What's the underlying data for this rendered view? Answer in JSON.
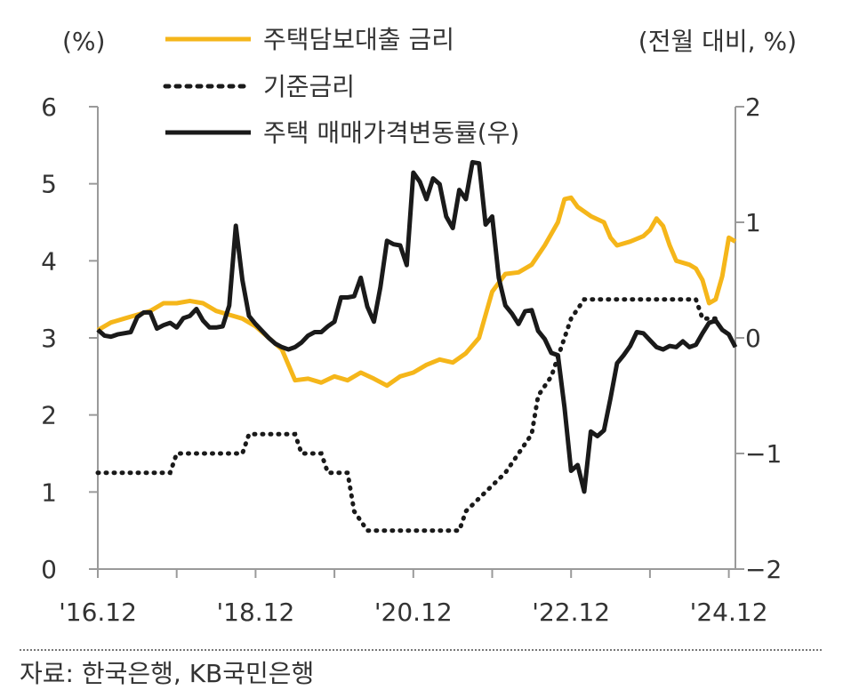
{
  "chart_data": {
    "type": "line",
    "left_unit": "(%)",
    "right_unit": "(전월 대비, %)",
    "y_left": {
      "lim": [
        0,
        6
      ],
      "ticks": [
        "0",
        "1",
        "2",
        "3",
        "4",
        "5",
        "6"
      ]
    },
    "y_right": {
      "lim": [
        -2,
        2
      ],
      "ticks": [
        "−2",
        "−1",
        "0",
        "1",
        "2"
      ]
    },
    "x_ticks": [
      {
        "label": "'16.12",
        "index": 0
      },
      {
        "label": "'18.12",
        "index": 24
      },
      {
        "label": "'20.12",
        "index": 48
      },
      {
        "label": "'22.12",
        "index": 72
      },
      {
        "label": "'24.12",
        "index": 96
      }
    ],
    "x_range": [
      0,
      97
    ],
    "colors": {
      "mortgage": "#F5B61A",
      "base": "#1a1a1a",
      "price": "#1a1a1a",
      "axis": "#9a9a9a"
    },
    "series": [
      {
        "name": "주택담보대출 금리",
        "axis": "left",
        "style": "solid-yellow",
        "points": [
          [
            0,
            3.1
          ],
          [
            2,
            3.2
          ],
          [
            4,
            3.25
          ],
          [
            6,
            3.3
          ],
          [
            8,
            3.35
          ],
          [
            10,
            3.45
          ],
          [
            12,
            3.45
          ],
          [
            14,
            3.48
          ],
          [
            16,
            3.45
          ],
          [
            18,
            3.35
          ],
          [
            20,
            3.3
          ],
          [
            22,
            3.25
          ],
          [
            24,
            3.15
          ],
          [
            26,
            3.0
          ],
          [
            28,
            2.85
          ],
          [
            30,
            2.45
          ],
          [
            32,
            2.47
          ],
          [
            34,
            2.42
          ],
          [
            36,
            2.5
          ],
          [
            38,
            2.45
          ],
          [
            40,
            2.55
          ],
          [
            42,
            2.47
          ],
          [
            44,
            2.38
          ],
          [
            46,
            2.5
          ],
          [
            48,
            2.55
          ],
          [
            50,
            2.65
          ],
          [
            52,
            2.72
          ],
          [
            54,
            2.68
          ],
          [
            56,
            2.8
          ],
          [
            58,
            3.0
          ],
          [
            60,
            3.6
          ],
          [
            62,
            3.83
          ],
          [
            64,
            3.85
          ],
          [
            66,
            3.95
          ],
          [
            68,
            4.2
          ],
          [
            70,
            4.5
          ],
          [
            71,
            4.8
          ],
          [
            72,
            4.82
          ],
          [
            73,
            4.7
          ],
          [
            75,
            4.58
          ],
          [
            77,
            4.5
          ],
          [
            78,
            4.3
          ],
          [
            79,
            4.2
          ],
          [
            81,
            4.25
          ],
          [
            83,
            4.32
          ],
          [
            84,
            4.4
          ],
          [
            85,
            4.55
          ],
          [
            86,
            4.45
          ],
          [
            87,
            4.2
          ],
          [
            88,
            4.0
          ],
          [
            90,
            3.95
          ],
          [
            91,
            3.9
          ],
          [
            92,
            3.75
          ],
          [
            93,
            3.45
          ],
          [
            94,
            3.5
          ],
          [
            95,
            3.8
          ],
          [
            96,
            4.3
          ],
          [
            97,
            4.25
          ]
        ]
      },
      {
        "name": "기준금리",
        "axis": "left",
        "style": "dotted-black",
        "points": [
          [
            0,
            1.25
          ],
          [
            11,
            1.25
          ],
          [
            12,
            1.5
          ],
          [
            22,
            1.5
          ],
          [
            23,
            1.75
          ],
          [
            30,
            1.75
          ],
          [
            31,
            1.5
          ],
          [
            34,
            1.5
          ],
          [
            35,
            1.25
          ],
          [
            38,
            1.25
          ],
          [
            39,
            0.75
          ],
          [
            41,
            0.5
          ],
          [
            55,
            0.5
          ],
          [
            56,
            0.75
          ],
          [
            59,
            1.0
          ],
          [
            62,
            1.25
          ],
          [
            64,
            1.5
          ],
          [
            66,
            1.75
          ],
          [
            67,
            2.25
          ],
          [
            69,
            2.5
          ],
          [
            70,
            2.75
          ],
          [
            71,
            3.0
          ],
          [
            72,
            3.25
          ],
          [
            74,
            3.5
          ],
          [
            91,
            3.5
          ],
          [
            92,
            3.25
          ],
          [
            94,
            3.25
          ]
        ]
      },
      {
        "name": "주택 매매가격변동률(우)",
        "axis": "right",
        "style": "solid-black",
        "points": [
          [
            0,
            0.07
          ],
          [
            1,
            0.02
          ],
          [
            2,
            0.01
          ],
          [
            3,
            0.03
          ],
          [
            4,
            0.04
          ],
          [
            5,
            0.05
          ],
          [
            6,
            0.18
          ],
          [
            7,
            0.22
          ],
          [
            8,
            0.22
          ],
          [
            9,
            0.08
          ],
          [
            10,
            0.11
          ],
          [
            11,
            0.13
          ],
          [
            12,
            0.09
          ],
          [
            13,
            0.17
          ],
          [
            14,
            0.19
          ],
          [
            15,
            0.25
          ],
          [
            16,
            0.15
          ],
          [
            17,
            0.09
          ],
          [
            18,
            0.09
          ],
          [
            19,
            0.1
          ],
          [
            20,
            0.28
          ],
          [
            21,
            0.97
          ],
          [
            22,
            0.5
          ],
          [
            23,
            0.19
          ],
          [
            24,
            0.12
          ],
          [
            25,
            0.06
          ],
          [
            26,
            0.0
          ],
          [
            27,
            -0.05
          ],
          [
            28,
            -0.08
          ],
          [
            29,
            -0.1
          ],
          [
            30,
            -0.08
          ],
          [
            31,
            -0.04
          ],
          [
            32,
            0.02
          ],
          [
            33,
            0.05
          ],
          [
            34,
            0.05
          ],
          [
            35,
            0.1
          ],
          [
            36,
            0.14
          ],
          [
            37,
            0.35
          ],
          [
            38,
            0.35
          ],
          [
            39,
            0.36
          ],
          [
            40,
            0.52
          ],
          [
            41,
            0.27
          ],
          [
            42,
            0.14
          ],
          [
            43,
            0.44
          ],
          [
            44,
            0.84
          ],
          [
            45,
            0.81
          ],
          [
            46,
            0.8
          ],
          [
            47,
            0.63
          ],
          [
            48,
            1.43
          ],
          [
            49,
            1.35
          ],
          [
            50,
            1.2
          ],
          [
            51,
            1.38
          ],
          [
            52,
            1.33
          ],
          [
            53,
            1.05
          ],
          [
            54,
            0.95
          ],
          [
            55,
            1.28
          ],
          [
            56,
            1.2
          ],
          [
            57,
            1.52
          ],
          [
            58,
            1.51
          ],
          [
            59,
            0.98
          ],
          [
            60,
            1.05
          ],
          [
            61,
            0.52
          ],
          [
            62,
            0.28
          ],
          [
            63,
            0.21
          ],
          [
            64,
            0.12
          ],
          [
            65,
            0.23
          ],
          [
            66,
            0.24
          ],
          [
            67,
            0.06
          ],
          [
            68,
            -0.01
          ],
          [
            69,
            -0.13
          ],
          [
            70,
            -0.15
          ],
          [
            71,
            -0.6
          ],
          [
            72,
            -1.15
          ],
          [
            73,
            -1.1
          ],
          [
            74,
            -1.33
          ],
          [
            75,
            -0.81
          ],
          [
            76,
            -0.85
          ],
          [
            77,
            -0.8
          ],
          [
            78,
            -0.52
          ],
          [
            79,
            -0.22
          ],
          [
            80,
            -0.15
          ],
          [
            81,
            -0.07
          ],
          [
            82,
            0.05
          ],
          [
            83,
            0.04
          ],
          [
            84,
            -0.02
          ],
          [
            85,
            -0.08
          ],
          [
            86,
            -0.1
          ],
          [
            87,
            -0.07
          ],
          [
            88,
            -0.08
          ],
          [
            89,
            -0.03
          ],
          [
            90,
            -0.08
          ],
          [
            91,
            -0.06
          ],
          [
            92,
            0.04
          ],
          [
            93,
            0.13
          ],
          [
            94,
            0.15
          ],
          [
            95,
            0.07
          ],
          [
            96,
            0.03
          ],
          [
            97,
            -0.08
          ]
        ]
      }
    ]
  },
  "source": "자료: 한국은행, KB국민은행"
}
